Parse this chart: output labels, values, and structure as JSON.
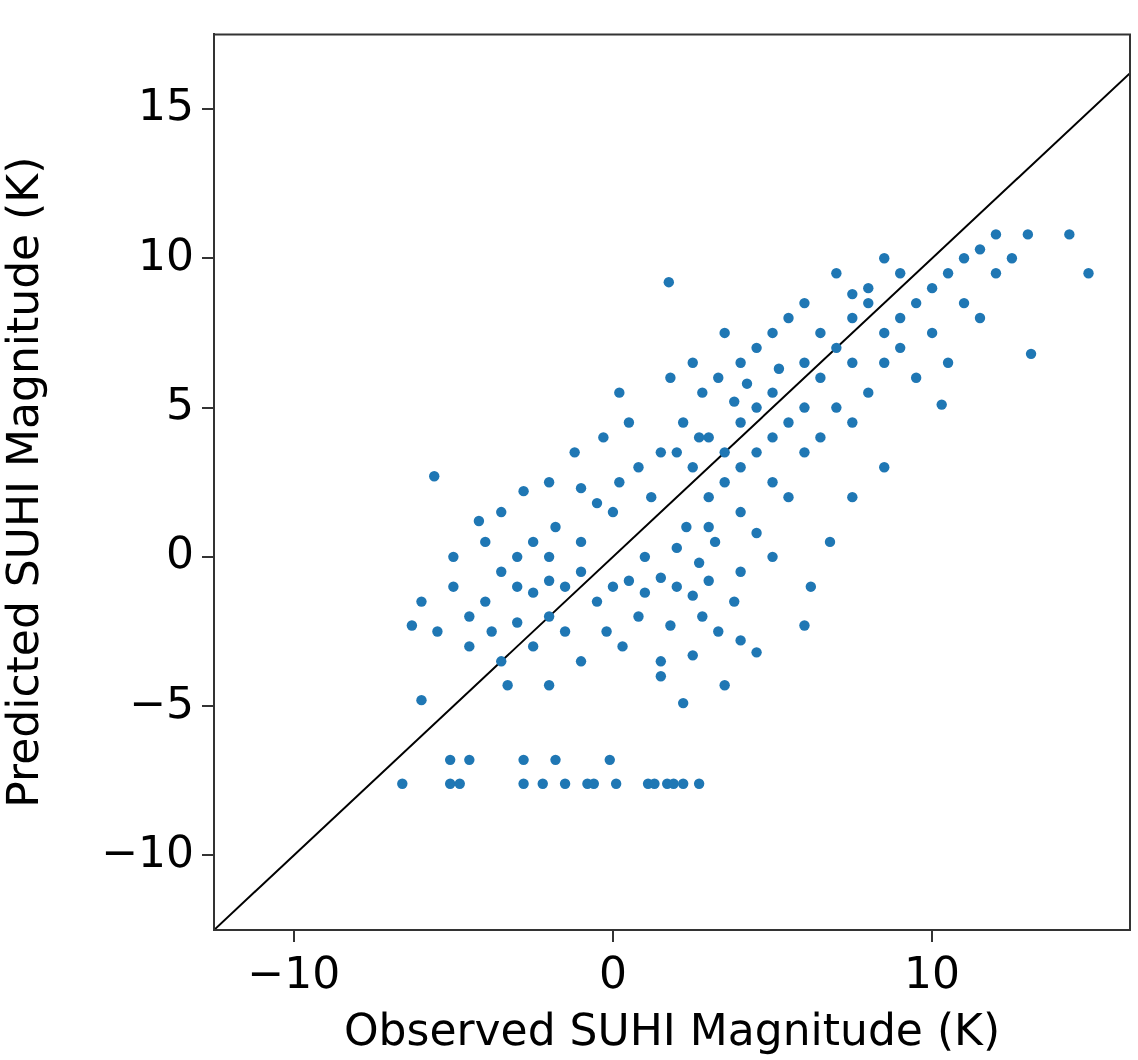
{
  "chart_data": {
    "type": "scatter",
    "xlabel": "Observed SUHI Magnitude (K)",
    "ylabel": "Predicted SUHI Magnitude (K)",
    "xlim": [
      -12.5,
      16.2
    ],
    "ylim": [
      -12.5,
      17.5
    ],
    "xticks": [
      -10,
      0,
      10
    ],
    "yticks": [
      -10,
      -5,
      0,
      5,
      10,
      15
    ],
    "grid": false,
    "legend": false,
    "marker": "circle",
    "series": [
      {
        "color": "#1f77b4",
        "x": [
          -4,
          -3.5,
          -3,
          -2.5,
          -2,
          -1.5,
          -3,
          -2.5,
          -2,
          -1,
          -1,
          -4.5,
          -3.8,
          -3,
          -2,
          -1.5,
          -0.5,
          -5,
          -5.5,
          -4,
          -3.5,
          -2.8,
          -2,
          -1,
          -0.5,
          0,
          -1.8,
          -4.5,
          -3.5,
          -2.5,
          -6,
          -5,
          -4.2,
          -3.3,
          -2,
          -1,
          -0.2,
          0,
          0.5,
          1,
          1.5,
          2,
          2.5,
          3,
          0.8,
          1.8,
          2.8,
          3.3,
          1,
          2,
          2.3,
          2.7,
          3.2,
          0.3,
          1.5,
          2.5,
          3.8,
          4,
          2.2,
          3.5,
          1.5,
          4.5,
          0.2,
          0.8,
          -0.3,
          0.2,
          0.5,
          1.2,
          1.5,
          -1.2,
          2.5,
          3,
          3.5,
          4,
          4.5,
          5,
          3,
          3.5,
          4,
          4.5,
          5,
          5.5,
          6,
          2.2,
          2.8,
          3.3,
          4,
          4.5,
          5,
          5.5,
          6,
          6.5,
          7,
          7.5,
          6,
          6.5,
          7,
          6,
          5,
          4,
          3,
          5.5,
          6.5,
          7.5,
          8,
          8.5,
          3.5,
          2.5,
          1.8,
          2,
          4.2,
          5.2,
          3.8,
          2.7,
          6.8,
          7.5,
          5,
          4.5,
          8.5,
          6.2,
          4,
          7.5,
          8,
          8.5,
          9,
          9.5,
          10,
          10.5,
          11,
          11.5,
          12,
          12.5,
          13,
          9,
          10,
          11,
          12,
          8,
          9,
          7,
          8.5,
          7.5,
          10.5,
          9.5,
          11.5,
          -5.6,
          -6,
          -6.3,
          1.75,
          14.9,
          13.1,
          14.3,
          10.3,
          6.0,
          -6.6,
          -5.1,
          -4.8,
          -2.8,
          -2.2,
          -1.5,
          -0.8,
          -0.6,
          0.1,
          1.1,
          1.3,
          1.7,
          1.9,
          2.2,
          2.7,
          -5.1,
          -4.5,
          -2.8,
          -1.8,
          -0.1
        ],
        "values": [
          -1.5,
          -0.5,
          -1,
          -1.2,
          -0.8,
          -1,
          0,
          0.5,
          0,
          -0.5,
          0.5,
          -2,
          -2.5,
          -2.2,
          -2,
          -2.5,
          -1.5,
          -1,
          -2.5,
          0.5,
          1.5,
          2.2,
          2.5,
          2.3,
          1.8,
          1.5,
          1,
          -3,
          -3.5,
          -3,
          -1.5,
          0,
          1.2,
          -4.3,
          -4.3,
          -3.5,
          -2.5,
          -1,
          -0.8,
          -1.2,
          -0.7,
          -1,
          -1.3,
          -0.8,
          -2,
          -2.3,
          -2,
          -2.5,
          0,
          0.3,
          1,
          -0.2,
          0.5,
          -3,
          -3.5,
          -3.3,
          -1.5,
          -2.8,
          -4.9,
          -4.3,
          -4,
          -3.2,
          2.5,
          3,
          4,
          5.5,
          4.5,
          2,
          3.5,
          3.5,
          3,
          4,
          3.5,
          4.5,
          5,
          5.5,
          2,
          2.5,
          3,
          3.5,
          4,
          4.5,
          5,
          4.5,
          5.5,
          6,
          6.5,
          7,
          7.5,
          8,
          8.5,
          7.5,
          7,
          6.5,
          6.5,
          6,
          5,
          3.5,
          2.5,
          1.5,
          1,
          2,
          4,
          4.5,
          5.5,
          6.5,
          7.5,
          6.5,
          6,
          3.5,
          5.8,
          6.3,
          5.2,
          4,
          0.5,
          2,
          0,
          0.8,
          3,
          -1,
          -0.5,
          8,
          8.5,
          7.5,
          8,
          8.5,
          9,
          9.5,
          10,
          10.3,
          10.8,
          10,
          10.8,
          7,
          7.5,
          8.5,
          9.5,
          9,
          9.5,
          9.5,
          10,
          8.8,
          6.5,
          6,
          8,
          2.7,
          -4.8,
          -2.3,
          9.2,
          9.5,
          6.8,
          10.8,
          5.1,
          -2.3,
          -7.6,
          -7.6,
          -7.6,
          -7.6,
          -7.6,
          -7.6,
          -7.6,
          -7.6,
          -7.6,
          -7.6,
          -7.6,
          -7.6,
          -7.6,
          -7.6,
          -7.6,
          -6.8,
          -6.8,
          -6.8,
          -6.8,
          -6.8
        ]
      },
      {
        "type": "line",
        "marker": "none",
        "color": "#000000",
        "x": [
          -12.5,
          16.2
        ],
        "values": [
          -12.5,
          16.2
        ]
      }
    ]
  }
}
